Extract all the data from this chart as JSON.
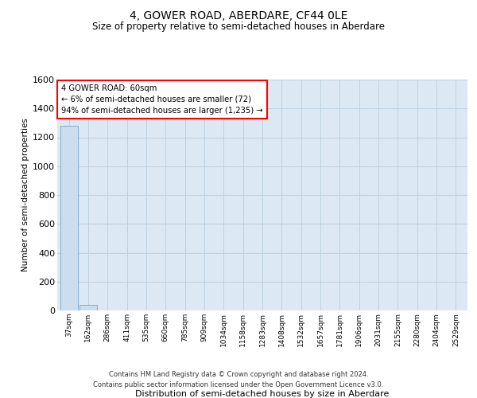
{
  "title": "4, GOWER ROAD, ABERDARE, CF44 0LE",
  "subtitle": "Size of property relative to semi-detached houses in Aberdare",
  "xlabel": "Distribution of semi-detached houses by size in Aberdare",
  "ylabel": "Number of semi-detached properties",
  "categories": [
    "37sqm",
    "162sqm",
    "286sqm",
    "411sqm",
    "535sqm",
    "660sqm",
    "785sqm",
    "909sqm",
    "1034sqm",
    "1158sqm",
    "1283sqm",
    "1408sqm",
    "1532sqm",
    "1657sqm",
    "1781sqm",
    "1906sqm",
    "2031sqm",
    "2155sqm",
    "2280sqm",
    "2404sqm",
    "2529sqm"
  ],
  "values": [
    1280,
    40,
    1,
    0,
    0,
    0,
    0,
    0,
    0,
    0,
    0,
    0,
    0,
    0,
    0,
    0,
    0,
    0,
    0,
    0,
    0
  ],
  "bar_color": "#ccdded",
  "bar_edge_color": "#7aafd4",
  "annotation_title": "4 GOWER ROAD: 60sqm",
  "annotation_line1": "← 6% of semi-detached houses are smaller (72)",
  "annotation_line2": "94% of semi-detached houses are larger (1,235) →",
  "ylim": [
    0,
    1600
  ],
  "yticks": [
    0,
    200,
    400,
    600,
    800,
    1000,
    1200,
    1400,
    1600
  ],
  "grid_color": "#bdd0e0",
  "bg_color": "#dce9f5",
  "footer_line1": "Contains HM Land Registry data © Crown copyright and database right 2024.",
  "footer_line2": "Contains public sector information licensed under the Open Government Licence v3.0."
}
